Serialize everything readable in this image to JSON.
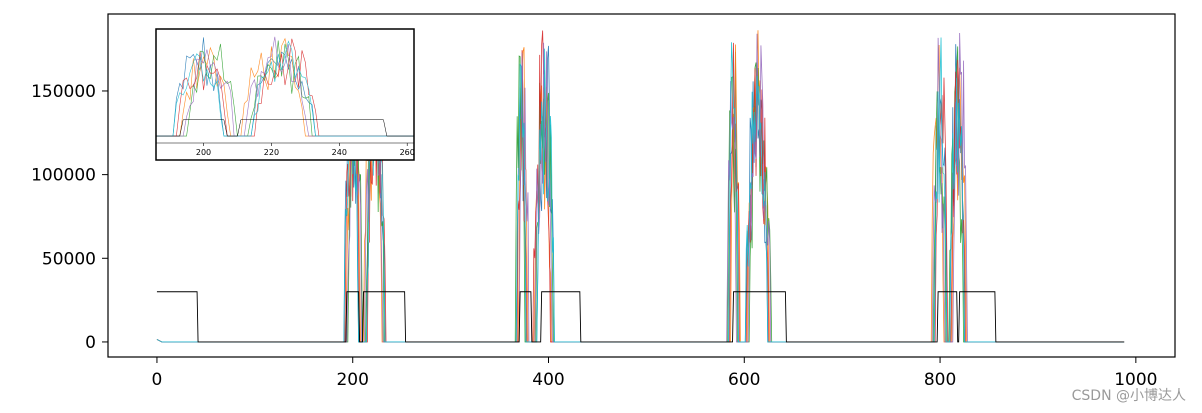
{
  "watermark": "CSDN @小博达人",
  "chart_data": {
    "type": "line",
    "grid": false,
    "legend": "none",
    "xlim": [
      -50,
      1040
    ],
    "ylim": [
      -9000,
      196000
    ],
    "xticks": [
      0,
      200,
      400,
      600,
      800,
      1000
    ],
    "yticks": [
      0,
      50000,
      100000,
      150000
    ],
    "inset": {
      "xlim": [
        186,
        262
      ],
      "ylim": [
        -9000,
        196000
      ],
      "xticks": [
        200,
        220,
        240,
        260
      ]
    },
    "series": [
      {
        "color": "#000000",
        "kind": "gate",
        "levels": [
          0,
          30000
        ],
        "on_intervals": [
          [
            0,
            41
          ],
          [
            193,
            206
          ],
          [
            210,
            253
          ],
          [
            370,
            382
          ],
          [
            392,
            432
          ],
          [
            588,
            642
          ],
          [
            797,
            817
          ],
          [
            819,
            856
          ]
        ],
        "x_end": 988
      },
      {
        "color": "#1f77b4"
      },
      {
        "color": "#ff7f0e"
      },
      {
        "color": "#2ca02c"
      },
      {
        "color": "#d62728"
      },
      {
        "color": "#9467bd"
      },
      {
        "color": "#17becf"
      }
    ],
    "bursts": [
      {
        "x": [
          193,
          208
        ],
        "peak": 188000
      },
      {
        "x": [
          213,
          232
        ],
        "peak": 188000
      },
      {
        "x": [
          368,
          378
        ],
        "peak": 188000
      },
      {
        "x": [
          386,
          404
        ],
        "peak": 188000
      },
      {
        "x": [
          584,
          594
        ],
        "peak": 188000
      },
      {
        "x": [
          603,
          626
        ],
        "peak": 188000
      },
      {
        "x": [
          793,
          806
        ],
        "peak": 188000
      },
      {
        "x": [
          811,
          826
        ],
        "peak": 188000
      }
    ]
  }
}
